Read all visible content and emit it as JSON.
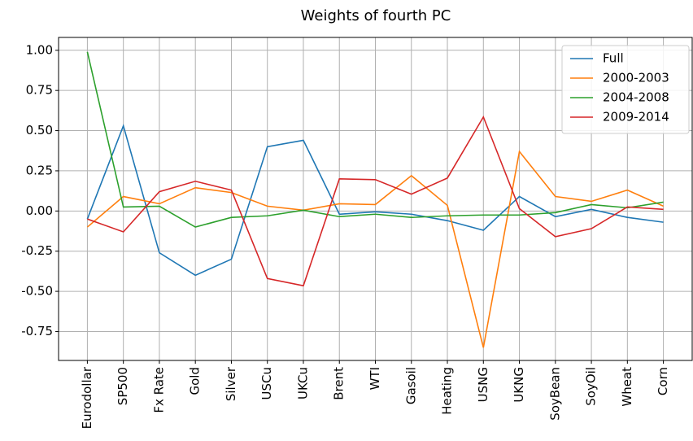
{
  "chart_data": {
    "type": "line",
    "title": "Weights of fourth PC",
    "categories": [
      "Eurodollar",
      "SP500",
      "Fx Rate",
      "Gold",
      "Silver",
      "USCu",
      "UKCu",
      "Brent",
      "WTI",
      "Gasoil",
      "Heating",
      "USNG",
      "UKNG",
      "SoyBean",
      "SoyOil",
      "Wheat",
      "Corn"
    ],
    "series": [
      {
        "name": "Full",
        "color": "#1f77b4",
        "values": [
          -0.05,
          0.53,
          -0.26,
          -0.4,
          -0.3,
          0.4,
          0.44,
          -0.02,
          -0.005,
          -0.02,
          -0.06,
          -0.12,
          0.09,
          -0.035,
          0.01,
          -0.04,
          -0.07
        ]
      },
      {
        "name": "2000-2003",
        "color": "#ff7f0e",
        "values": [
          -0.1,
          0.09,
          0.045,
          0.145,
          0.115,
          0.03,
          0.005,
          0.045,
          0.04,
          0.22,
          0.035,
          -0.85,
          0.37,
          0.09,
          0.06,
          0.13,
          0.03
        ]
      },
      {
        "name": "2004-2008",
        "color": "#2ca02c",
        "values": [
          0.99,
          0.025,
          0.03,
          -0.1,
          -0.04,
          -0.03,
          0.005,
          -0.035,
          -0.02,
          -0.04,
          -0.03,
          -0.025,
          -0.025,
          -0.01,
          0.04,
          0.02,
          0.055
        ]
      },
      {
        "name": "2009-2014",
        "color": "#d62728",
        "values": [
          -0.05,
          -0.13,
          0.12,
          0.185,
          0.13,
          -0.42,
          -0.465,
          0.2,
          0.195,
          0.105,
          0.205,
          0.585,
          0.015,
          -0.16,
          -0.11,
          0.025,
          0.01
        ]
      }
    ],
    "ylim": [
      -0.93,
      1.08
    ],
    "yticks": [
      {
        "value": -0.75,
        "label": "-0.75"
      },
      {
        "value": -0.5,
        "label": "-0.50"
      },
      {
        "value": -0.25,
        "label": "-0.25"
      },
      {
        "value": 0,
        "label": "0.00"
      },
      {
        "value": 0.25,
        "label": "0.25"
      },
      {
        "value": 0.5,
        "label": "0.50"
      },
      {
        "value": 0.75,
        "label": "0.75"
      },
      {
        "value": 1,
        "label": "1.00"
      }
    ],
    "grid": true,
    "legend": "upper right"
  }
}
